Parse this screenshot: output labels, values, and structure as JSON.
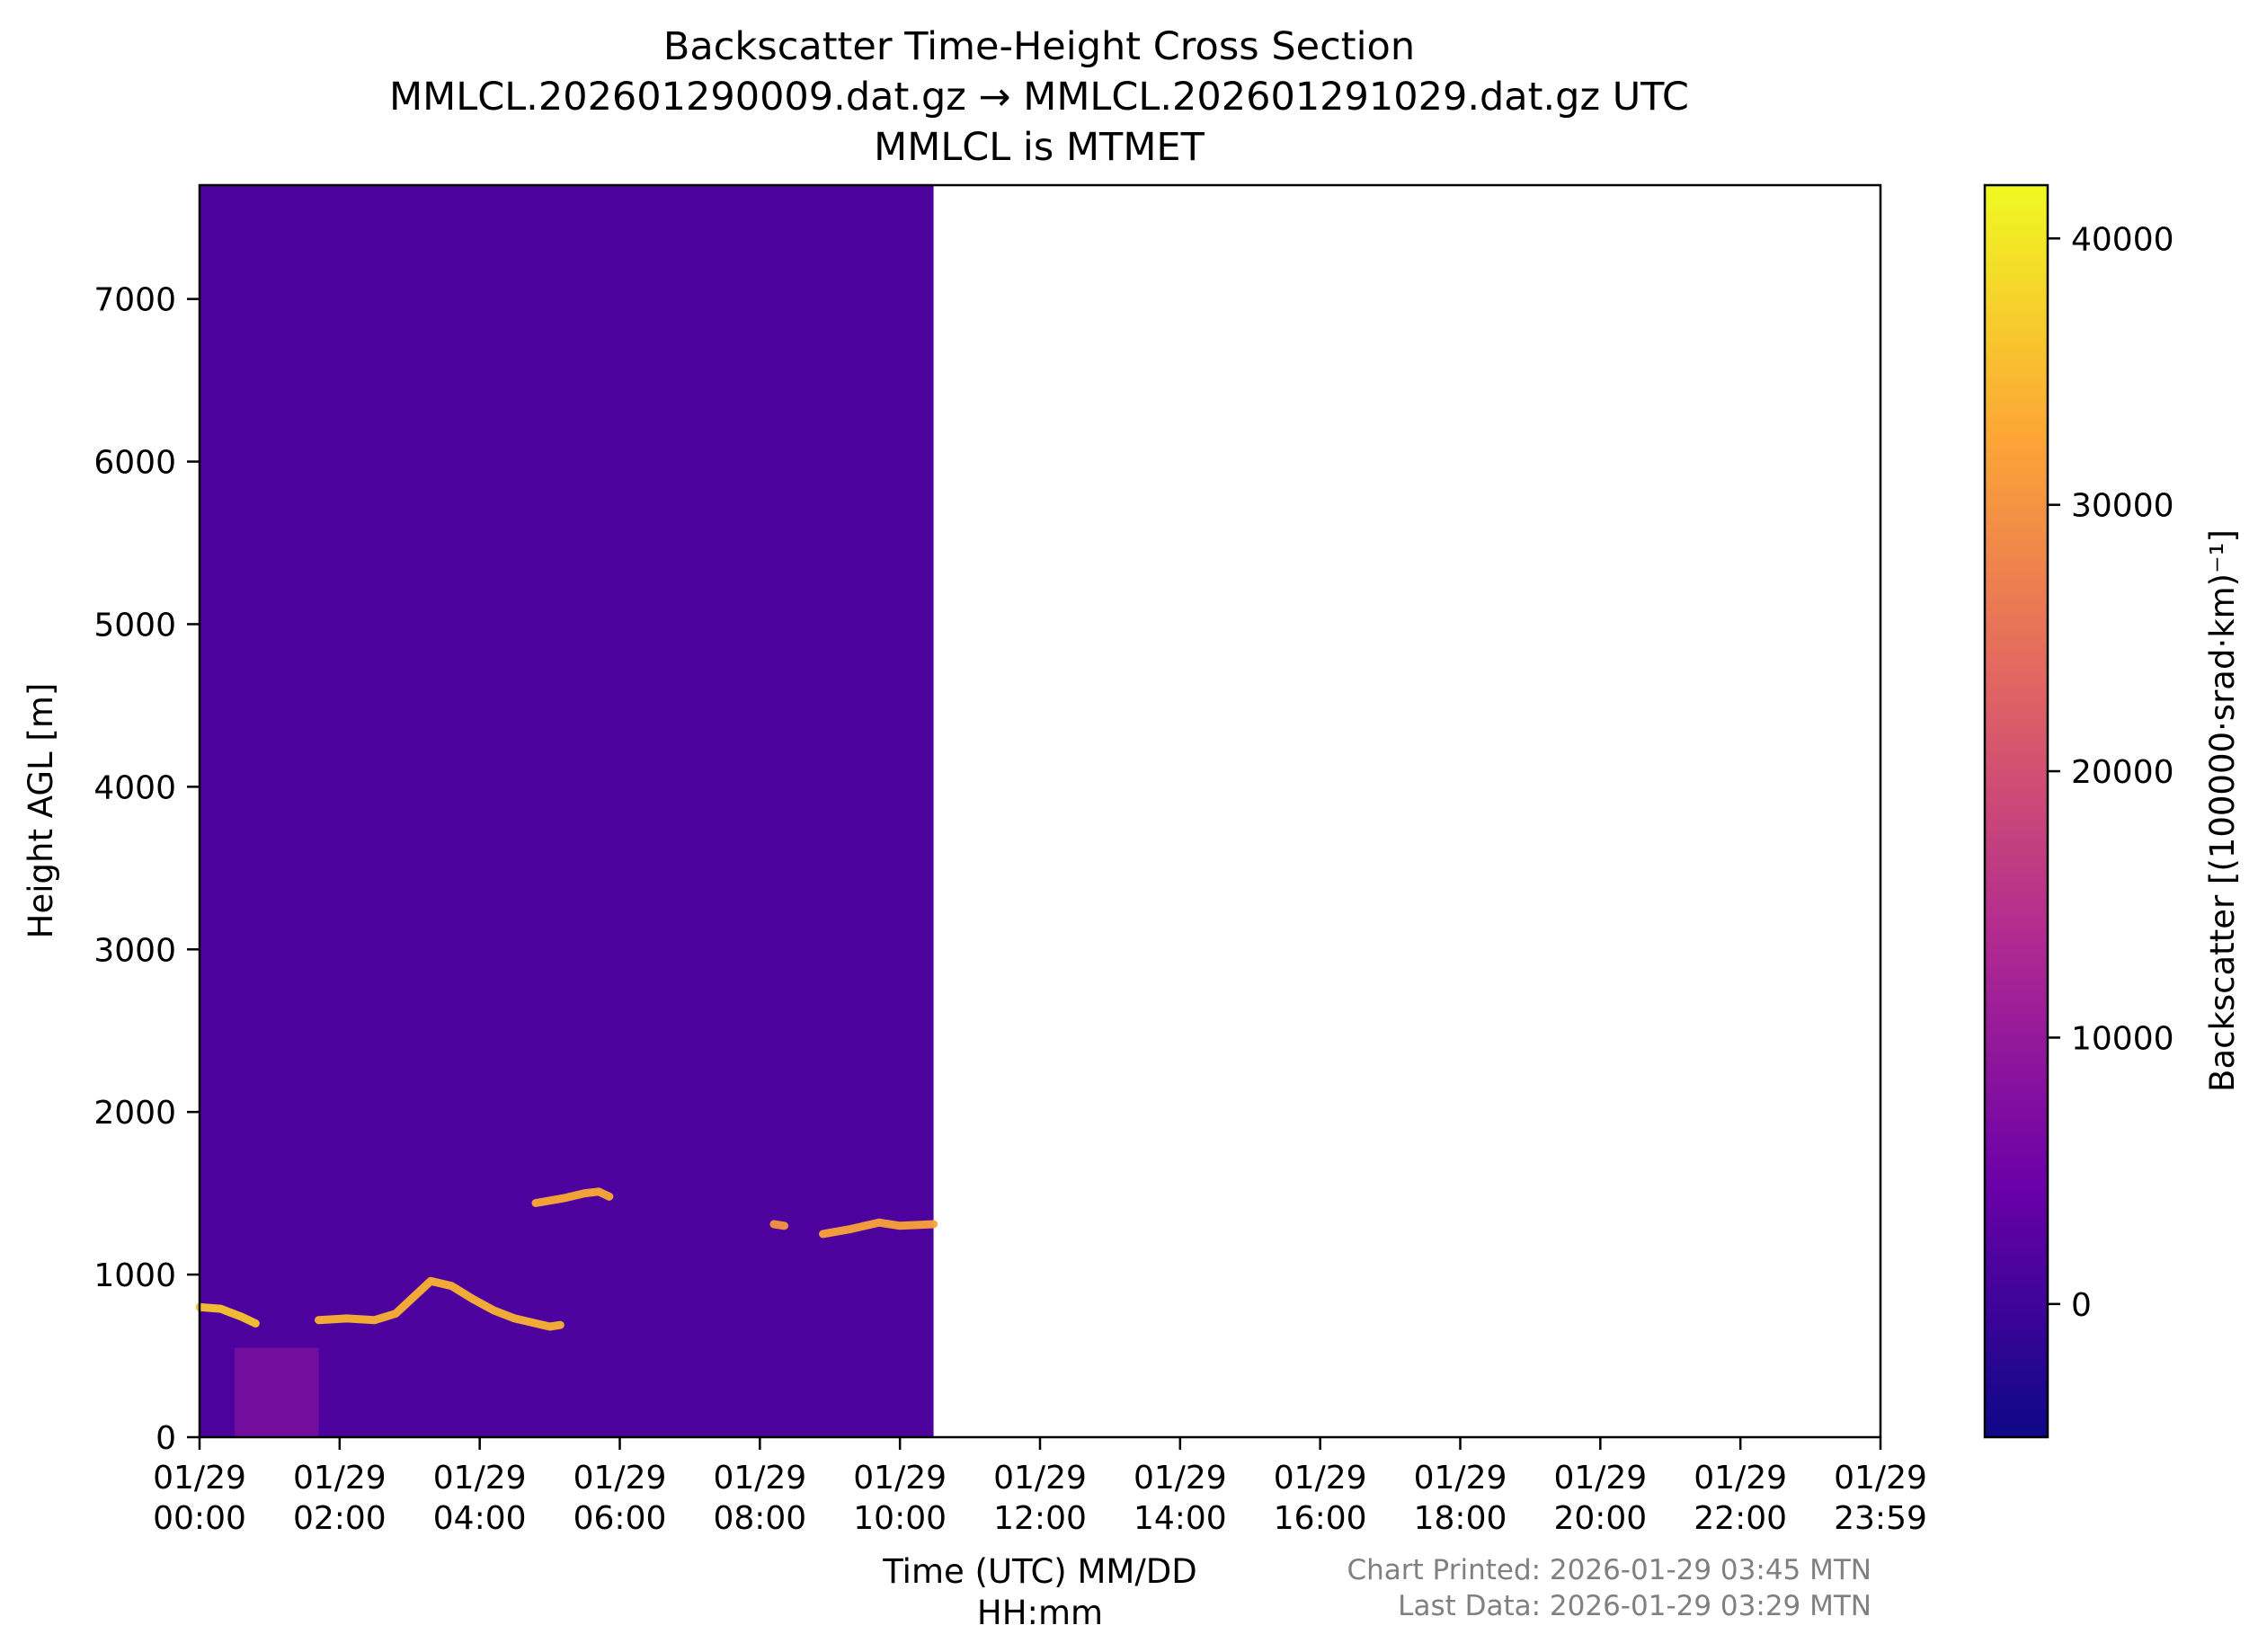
{
  "chart_data": {
    "type": "heatmap",
    "title_lines": [
      "Backscatter Time-Height Cross Section",
      "MMLCL.202601290009.dat.gz → MMLCL.202601291029.dat.gz UTC",
      "MMLCL is MTMET"
    ],
    "xlabel_lines": [
      "Time (UTC) MM/DD",
      "HH:mm"
    ],
    "ylabel": "Height AGL [m]",
    "colorbar_label": "Backscatter [(100000·srad·km)⁻¹]",
    "x_range_hours": [
      0,
      24
    ],
    "x_ticks": [
      {
        "hour": 0,
        "line1": "01/29",
        "line2": "00:00"
      },
      {
        "hour": 2,
        "line1": "01/29",
        "line2": "02:00"
      },
      {
        "hour": 4,
        "line1": "01/29",
        "line2": "04:00"
      },
      {
        "hour": 6,
        "line1": "01/29",
        "line2": "06:00"
      },
      {
        "hour": 8,
        "line1": "01/29",
        "line2": "08:00"
      },
      {
        "hour": 10,
        "line1": "01/29",
        "line2": "10:00"
      },
      {
        "hour": 12,
        "line1": "01/29",
        "line2": "12:00"
      },
      {
        "hour": 14,
        "line1": "01/29",
        "line2": "14:00"
      },
      {
        "hour": 16,
        "line1": "01/29",
        "line2": "16:00"
      },
      {
        "hour": 18,
        "line1": "01/29",
        "line2": "18:00"
      },
      {
        "hour": 20,
        "line1": "01/29",
        "line2": "20:00"
      },
      {
        "hour": 22,
        "line1": "01/29",
        "line2": "22:00"
      },
      {
        "hour": 24,
        "line1": "01/29",
        "line2": "23:59"
      }
    ],
    "y_range": [
      0,
      7700
    ],
    "y_ticks": [
      0,
      1000,
      2000,
      3000,
      4000,
      5000,
      6000,
      7000
    ],
    "colorbar_range": [
      -5000,
      42000
    ],
    "colorbar_ticks": [
      0,
      10000,
      20000,
      30000,
      40000
    ],
    "colormap": "plasma",
    "colormap_stops": [
      "#0d0887",
      "#6a00a8",
      "#b12a90",
      "#e16462",
      "#fca636",
      "#f0f921"
    ],
    "background_value": 1500,
    "data_end_hour": 10.48,
    "cloud_layers": [
      {
        "name": "layer-1",
        "value": 36000,
        "points": [
          [
            0.0,
            800
          ],
          [
            0.3,
            790
          ],
          [
            0.6,
            740
          ],
          [
            0.8,
            700
          ]
        ]
      },
      {
        "name": "layer-2",
        "value": 34000,
        "points": [
          [
            1.7,
            720
          ],
          [
            2.1,
            730
          ],
          [
            2.5,
            720
          ],
          [
            2.8,
            760
          ],
          [
            3.1,
            880
          ],
          [
            3.3,
            960
          ],
          [
            3.6,
            930
          ],
          [
            3.9,
            850
          ],
          [
            4.2,
            780
          ],
          [
            4.5,
            730
          ],
          [
            4.8,
            700
          ],
          [
            5.0,
            680
          ],
          [
            5.15,
            690
          ]
        ]
      },
      {
        "name": "layer-3",
        "value": 33000,
        "points": [
          [
            4.8,
            1440
          ],
          [
            5.2,
            1470
          ],
          [
            5.5,
            1500
          ],
          [
            5.7,
            1510
          ],
          [
            5.85,
            1480
          ]
        ]
      },
      {
        "name": "layer-4",
        "value": 30000,
        "points": [
          [
            8.2,
            1310
          ],
          [
            8.35,
            1300
          ]
        ]
      },
      {
        "name": "layer-5",
        "value": 32000,
        "points": [
          [
            8.9,
            1250
          ],
          [
            9.3,
            1280
          ],
          [
            9.7,
            1320
          ],
          [
            10.0,
            1300
          ],
          [
            10.48,
            1310
          ]
        ]
      }
    ],
    "low_signal_regions": [
      {
        "name": "precip-streak",
        "value": 9000,
        "x": [
          0.5,
          1.7
        ],
        "y": [
          0,
          550
        ]
      }
    ]
  },
  "footer": {
    "printed": "Chart Printed: 2026-01-29 03:45 MTN",
    "last_data": "Last Data: 2026-01-29 03:29 MTN"
  }
}
